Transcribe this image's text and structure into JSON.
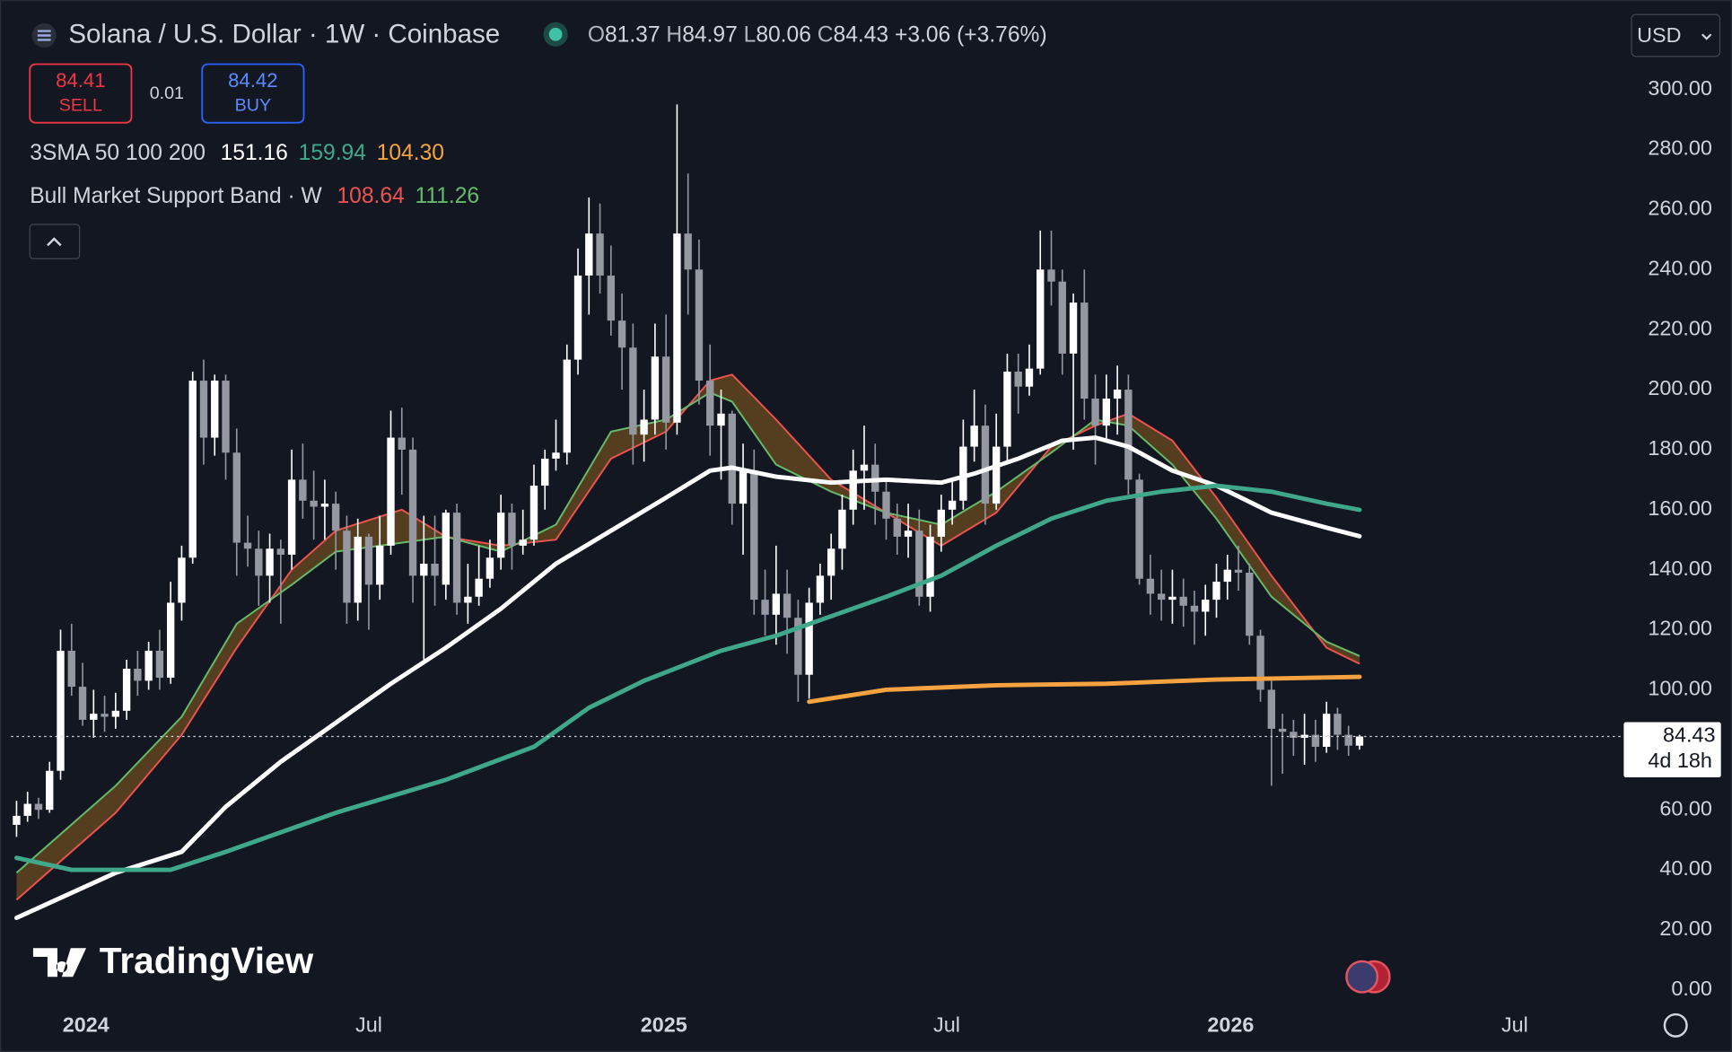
{
  "chart_data": {
    "type": "candlestick",
    "title": "Solana / U.S. Dollar · 1W · Coinbase",
    "ohlc_legend": {
      "labels": [
        "O",
        "H",
        "L",
        "C"
      ],
      "values": [
        81.37,
        84.97,
        80.06,
        84.43
      ],
      "change": {
        "value": 3.06,
        "label": "+3.06"
      },
      "change_pct": {
        "value": 3.76,
        "label": "(+3.76%)"
      }
    },
    "trade": {
      "sell": 84.41,
      "sell_label": "SELL",
      "spread": 0.01,
      "buy": 84.42,
      "buy_label": "BUY"
    },
    "indicators": [
      {
        "name": "3SMA 50 100 200",
        "values": [
          151.16,
          159.94,
          {
            "value": 104.3,
            "label": "104.30"
          }
        ],
        "colors": [
          "#ffffff",
          "#3fa88b",
          "#f7a440"
        ]
      },
      {
        "name": "Bull Market Support Band · W",
        "values": [
          108.64,
          111.26
        ],
        "colors": [
          "#ef5350",
          "#66bb6a"
        ]
      }
    ],
    "currency": "USD",
    "brand": "TradingView",
    "price_tag": {
      "price": 84.43,
      "countdown": "4d 18h"
    },
    "up_color": "#ffffff",
    "down_color": "#9598a1",
    "xlim": [
      -0.5,
      145.5
    ],
    "xticks": [
      {
        "value": 6.3,
        "label": "2024"
      },
      {
        "value": 32,
        "label": "Jul"
      },
      {
        "value": 58.8,
        "label": "2025"
      },
      {
        "value": 84.5,
        "label": "Jul"
      },
      {
        "value": 110.3,
        "label": "2026"
      },
      {
        "value": 136.1,
        "label": "Jul"
      }
    ],
    "ylim": [
      -5.2,
      326.1
    ],
    "yticks": [
      {
        "value": 0,
        "label": "0.00"
      },
      {
        "value": 20,
        "label": "20.00"
      },
      {
        "value": 40,
        "label": "40.00"
      },
      {
        "value": 60,
        "label": "60.00"
      },
      {
        "value": 80,
        "label": "80.00"
      },
      {
        "value": 100,
        "label": "100.00"
      },
      {
        "value": 120,
        "label": "120.00"
      },
      {
        "value": 140,
        "label": "140.00"
      },
      {
        "value": 160,
        "label": "160.00"
      },
      {
        "value": 180,
        "label": "180.00"
      },
      {
        "value": 200,
        "label": "200.00"
      },
      {
        "value": 220,
        "label": "220.00"
      },
      {
        "value": 240,
        "label": "240.00"
      },
      {
        "value": 260,
        "label": "260.00"
      },
      {
        "value": 280,
        "label": "280.00"
      },
      {
        "value": 300,
        "label": "300.00"
      }
    ],
    "ohlc": [
      [
        55,
        63,
        51,
        58
      ],
      [
        58,
        66,
        56,
        62
      ],
      [
        62,
        64,
        57,
        60
      ],
      [
        60,
        76,
        59,
        73
      ],
      [
        73,
        120,
        70,
        113
      ],
      [
        113,
        122,
        98,
        101
      ],
      [
        101,
        109,
        88,
        90
      ],
      [
        90,
        100,
        84,
        92
      ],
      [
        92,
        98,
        86,
        91
      ],
      [
        91,
        99,
        87,
        93
      ],
      [
        93,
        110,
        90,
        107
      ],
      [
        107,
        113,
        98,
        103
      ],
      [
        103,
        116,
        100,
        113
      ],
      [
        113,
        120,
        100,
        104
      ],
      [
        104,
        136,
        102,
        129
      ],
      [
        129,
        148,
        123,
        144
      ],
      [
        144,
        206,
        142,
        203
      ],
      [
        203,
        210,
        175,
        184
      ],
      [
        184,
        205,
        178,
        203
      ],
      [
        203,
        205,
        170,
        179
      ],
      [
        179,
        187,
        138,
        149
      ],
      [
        149,
        158,
        141,
        147
      ],
      [
        147,
        153,
        128,
        138
      ],
      [
        138,
        152,
        129,
        147
      ],
      [
        147,
        150,
        122,
        145
      ],
      [
        145,
        180,
        140,
        170
      ],
      [
        170,
        182,
        157,
        163
      ],
      [
        163,
        173,
        150,
        161
      ],
      [
        161,
        170,
        150,
        162
      ],
      [
        162,
        166,
        140,
        153
      ],
      [
        153,
        158,
        122,
        129
      ],
      [
        129,
        157,
        123,
        151
      ],
      [
        151,
        152,
        120,
        135
      ],
      [
        135,
        158,
        130,
        148
      ],
      [
        148,
        193,
        145,
        184
      ],
      [
        184,
        194,
        165,
        180
      ],
      [
        180,
        184,
        129,
        138
      ],
      [
        138,
        158,
        110,
        142
      ],
      [
        142,
        158,
        128,
        138
      ],
      [
        135,
        160,
        130,
        159
      ],
      [
        159,
        162,
        125,
        129
      ],
      [
        129,
        142,
        122,
        131
      ],
      [
        131,
        148,
        128,
        137
      ],
      [
        137,
        150,
        134,
        144
      ],
      [
        144,
        165,
        140,
        159
      ],
      [
        159,
        162,
        140,
        148
      ],
      [
        148,
        160,
        145,
        150
      ],
      [
        150,
        175,
        148,
        168
      ],
      [
        168,
        180,
        160,
        177
      ],
      [
        177,
        190,
        173,
        179
      ],
      [
        179,
        215,
        175,
        210
      ],
      [
        210,
        247,
        205,
        238
      ],
      [
        238,
        264,
        225,
        252
      ],
      [
        252,
        262,
        232,
        238
      ],
      [
        238,
        248,
        218,
        223
      ],
      [
        223,
        232,
        200,
        214
      ],
      [
        214,
        222,
        175,
        185
      ],
      [
        185,
        200,
        176,
        190
      ],
      [
        190,
        222,
        185,
        211
      ],
      [
        211,
        225,
        180,
        189
      ],
      [
        189,
        295,
        185,
        252
      ],
      [
        252,
        272,
        225,
        240
      ],
      [
        240,
        250,
        195,
        203
      ],
      [
        203,
        215,
        178,
        188
      ],
      [
        188,
        200,
        170,
        192
      ],
      [
        192,
        193,
        155,
        162
      ],
      [
        162,
        182,
        145,
        173
      ],
      [
        173,
        180,
        125,
        130
      ],
      [
        130,
        140,
        118,
        125
      ],
      [
        125,
        148,
        115,
        132
      ],
      [
        132,
        140,
        112,
        124
      ],
      [
        124,
        130,
        96,
        105
      ],
      [
        105,
        134,
        97,
        129
      ],
      [
        129,
        142,
        125,
        138
      ],
      [
        138,
        152,
        130,
        147
      ],
      [
        147,
        165,
        140,
        160
      ],
      [
        160,
        180,
        155,
        173
      ],
      [
        173,
        188,
        160,
        175
      ],
      [
        175,
        182,
        155,
        166
      ],
      [
        166,
        170,
        150,
        157
      ],
      [
        157,
        162,
        145,
        151
      ],
      [
        151,
        162,
        144,
        153
      ],
      [
        153,
        160,
        128,
        131
      ],
      [
        131,
        155,
        126,
        151
      ],
      [
        151,
        165,
        146,
        160
      ],
      [
        160,
        170,
        155,
        163
      ],
      [
        163,
        190,
        160,
        181
      ],
      [
        181,
        200,
        176,
        188
      ],
      [
        188,
        195,
        155,
        162
      ],
      [
        162,
        192,
        160,
        181
      ],
      [
        181,
        212,
        176,
        206
      ],
      [
        206,
        212,
        192,
        201
      ],
      [
        201,
        215,
        198,
        207
      ],
      [
        207,
        253,
        205,
        240
      ],
      [
        240,
        253,
        228,
        236
      ],
      [
        236,
        240,
        205,
        212
      ],
      [
        212,
        232,
        180,
        229
      ],
      [
        229,
        240,
        190,
        197
      ],
      [
        197,
        205,
        175,
        188
      ],
      [
        188,
        205,
        183,
        197
      ],
      [
        197,
        208,
        185,
        200
      ],
      [
        200,
        205,
        165,
        170
      ],
      [
        170,
        172,
        135,
        137
      ],
      [
        137,
        145,
        125,
        132
      ],
      [
        132,
        140,
        123,
        130
      ],
      [
        130,
        140,
        122,
        131
      ],
      [
        131,
        137,
        121,
        128
      ],
      [
        128,
        133,
        115,
        126
      ],
      [
        126,
        135,
        118,
        130
      ],
      [
        130,
        142,
        124,
        136
      ],
      [
        136,
        145,
        130,
        140
      ],
      [
        140,
        148,
        133,
        139
      ],
      [
        139,
        142,
        115,
        118
      ],
      [
        118,
        120,
        96,
        100
      ],
      [
        100,
        103,
        68,
        87
      ],
      [
        87,
        92,
        72,
        86
      ],
      [
        86,
        90,
        78,
        84
      ],
      [
        84,
        92,
        75,
        85
      ],
      [
        85,
        90,
        76,
        81
      ],
      [
        81,
        96,
        79,
        92
      ],
      [
        92,
        94,
        80,
        85
      ],
      [
        85,
        88,
        78,
        81.37
      ],
      [
        81.37,
        84.97,
        80.06,
        84.43
      ]
    ],
    "moving_averages": [
      {
        "color": "#ffffff",
        "x": [
          0,
          9,
          15,
          19,
          24,
          29,
          34,
          39,
          44,
          49,
          54,
          59,
          63,
          65,
          69,
          74,
          79,
          84,
          87,
          91,
          95,
          98,
          101,
          105,
          109,
          114,
          119,
          122
        ],
        "values": [
          24,
          39,
          46,
          61,
          76,
          89,
          102,
          114,
          127,
          142,
          153,
          164,
          173,
          174,
          171,
          169,
          170,
          169,
          172,
          177,
          183,
          184,
          181,
          173,
          168,
          159,
          154,
          151.16
        ]
      },
      {
        "color": "#3fa88b",
        "x": [
          0,
          5,
          14,
          19,
          29,
          39,
          47,
          52,
          57,
          64,
          69,
          79,
          84,
          89,
          94,
          99,
          104,
          109,
          114,
          119,
          122
        ],
        "values": [
          44,
          40,
          40,
          46,
          59,
          70,
          81,
          94,
          103,
          113,
          118,
          131,
          138,
          148,
          157,
          163,
          166,
          168,
          166,
          162,
          159.94
        ]
      },
      {
        "color": "#f7a440",
        "x": [
          72,
          79,
          89,
          99,
          109,
          122
        ],
        "values": [
          96,
          100,
          101.5,
          102,
          103.4,
          104.3
        ]
      }
    ],
    "support_band": {
      "fill": "rgba(140,95,30,0.55)",
      "x": [
        0,
        9,
        15,
        20,
        25,
        29,
        35,
        39,
        44,
        49,
        54,
        59,
        63,
        65,
        69,
        74,
        79,
        84,
        89,
        94,
        98,
        101,
        105,
        109,
        114,
        119,
        122
      ],
      "series": [
        {
          "color": "#ef5350",
          "values": [
            30,
            59,
            85,
            114,
            140,
            153,
            160,
            151,
            148,
            150,
            177,
            186,
            203,
            205,
            190,
            170,
            159,
            148,
            159,
            181,
            188,
            192,
            183,
            164,
            138,
            114,
            108.64
          ]
        },
        {
          "color": "#66bb6a",
          "values": [
            39,
            68,
            91,
            122,
            135,
            146,
            149,
            151,
            146,
            155,
            186,
            190,
            199,
            196,
            175,
            166,
            159,
            155,
            166,
            179,
            190,
            188,
            175,
            157,
            131,
            116,
            111.26
          ]
        }
      ]
    }
  }
}
